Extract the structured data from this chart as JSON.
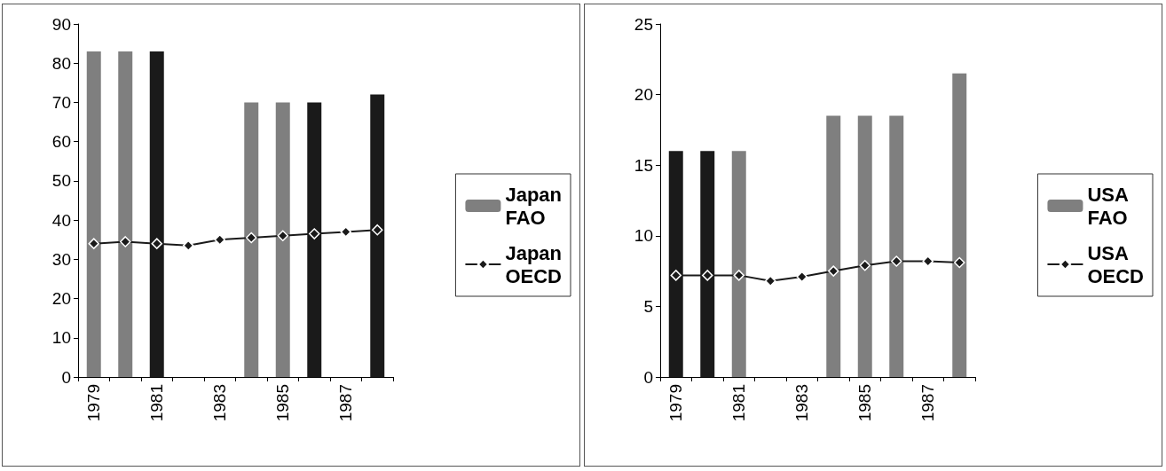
{
  "chart_data": [
    {
      "type": "bar",
      "categories": [
        "1979",
        null,
        "1981",
        null,
        "1983",
        null,
        "1985",
        null,
        "1987",
        null
      ],
      "ylim": [
        0,
        90
      ],
      "yticks": [
        0,
        10,
        20,
        30,
        40,
        50,
        60,
        70,
        80,
        90
      ],
      "grid": false,
      "legend": "right",
      "marker": "diamond",
      "series": [
        {
          "name": "Japan FAO",
          "color": "#7f7f7f",
          "colors": [
            "#7f7f7f",
            "#7f7f7f",
            "#1a1a1a",
            null,
            null,
            "#7f7f7f",
            "#7f7f7f",
            "#1a1a1a",
            null,
            "#1a1a1a"
          ],
          "values": [
            83,
            83,
            83,
            null,
            null,
            70,
            70,
            70,
            null,
            72
          ]
        },
        {
          "name": "Japan OECD",
          "type": "line",
          "color": "#1a1a1a",
          "values": [
            34,
            34.5,
            34,
            33.5,
            35,
            35.5,
            36,
            36.5,
            37,
            37.5
          ]
        }
      ]
    },
    {
      "type": "bar",
      "categories": [
        "1979",
        null,
        "1981",
        null,
        "1983",
        null,
        "1985",
        null,
        "1987",
        null
      ],
      "ylim": [
        0,
        25
      ],
      "yticks": [
        0,
        5,
        10,
        15,
        20,
        25
      ],
      "grid": false,
      "legend": "right",
      "marker": "diamond",
      "series": [
        {
          "name": "USA FAO",
          "color": "#7f7f7f",
          "colors": [
            "#1a1a1a",
            "#1a1a1a",
            "#7f7f7f",
            null,
            null,
            "#7f7f7f",
            "#7f7f7f",
            "#7f7f7f",
            null,
            "#7f7f7f"
          ],
          "values": [
            16,
            16,
            16,
            null,
            null,
            18.5,
            18.5,
            18.5,
            null,
            21.5
          ]
        },
        {
          "name": "USA OECD",
          "type": "line",
          "color": "#1a1a1a",
          "values": [
            7.2,
            7.2,
            7.2,
            6.8,
            7.1,
            7.5,
            7.9,
            8.2,
            8.2,
            8.1
          ]
        }
      ]
    }
  ]
}
